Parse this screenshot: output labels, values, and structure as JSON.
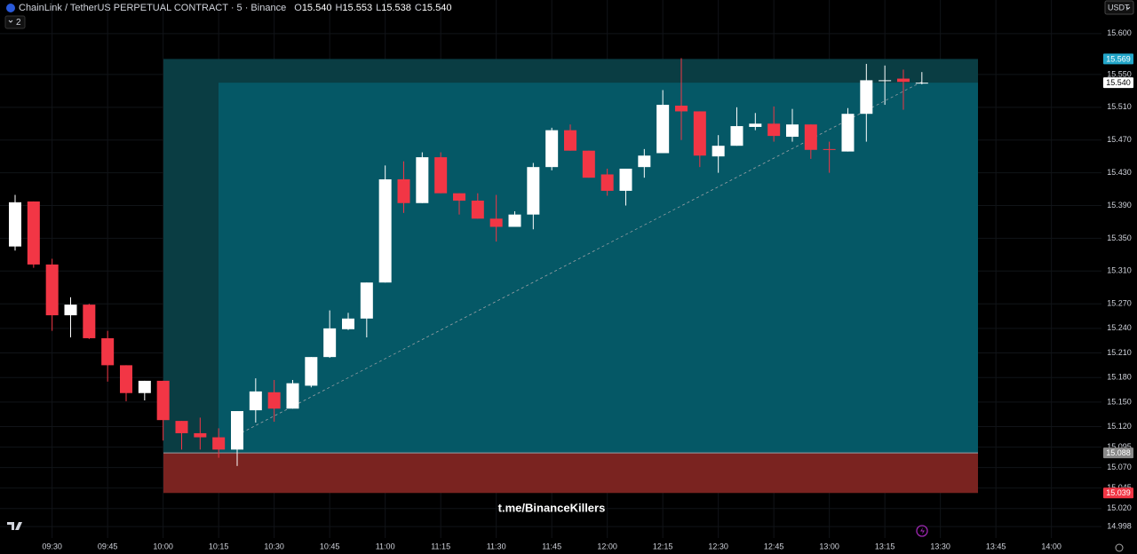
{
  "chart_data": {
    "type": "candlestick",
    "title": "ChainLink / TetherUS PERPETUAL CONTRACT · 5 · Binance",
    "ohlc_legend": [
      {
        "key": "O",
        "label": "15.540"
      },
      {
        "key": "H",
        "label": "15.553"
      },
      {
        "key": "L",
        "label": "15.538"
      },
      {
        "key": "C",
        "label": "15.540"
      }
    ],
    "currency": "USDT",
    "layout_count": "2",
    "watermark": "t.me/BinanceKillers",
    "up_color": "#ffffff",
    "down_color": "#f23645",
    "grid": true,
    "categories": [
      null,
      null,
      "09:30",
      null,
      null,
      "09:45",
      null,
      null,
      "10:00",
      null,
      null,
      "10:15",
      null,
      null,
      "10:30",
      null,
      null,
      "10:45",
      null,
      null,
      "11:00",
      null,
      null,
      "11:15",
      null,
      null,
      "11:30",
      null,
      null,
      "11:45",
      null,
      null,
      "12:00",
      null,
      null,
      "12:15",
      null,
      null,
      "12:30",
      null,
      null,
      "12:45",
      null,
      null,
      "13:00",
      null,
      null,
      "13:15",
      null,
      null,
      "13:30",
      null,
      null,
      "13:45",
      null,
      null,
      "14:00"
    ],
    "open": [
      15.34,
      15.395,
      15.318,
      15.256,
      15.269,
      15.228,
      15.195,
      15.161,
      15.176,
      15.127,
      15.112,
      15.107,
      15.092,
      15.14,
      15.162,
      15.142,
      15.17,
      15.205,
      15.239,
      15.252,
      15.296,
      15.422,
      15.393,
      15.449,
      15.405,
      15.396,
      15.374,
      15.364,
      15.379,
      15.437,
      15.482,
      15.457,
      15.428,
      15.408,
      15.437,
      15.454,
      15.512,
      15.505,
      15.45,
      15.463,
      15.486,
      15.49,
      15.474,
      15.489,
      15.459,
      15.456,
      15.502,
      15.542,
      15.545,
      15.54,
      null,
      null,
      null,
      null,
      null,
      null,
      null
    ],
    "high": [
      15.403,
      15.395,
      15.325,
      15.278,
      15.27,
      15.237,
      15.195,
      15.176,
      15.176,
      15.127,
      15.131,
      15.118,
      15.139,
      15.179,
      15.177,
      15.177,
      15.205,
      15.262,
      15.259,
      15.296,
      15.439,
      15.444,
      15.455,
      15.455,
      15.405,
      15.405,
      15.403,
      15.383,
      15.442,
      15.485,
      15.489,
      15.457,
      15.435,
      15.435,
      15.459,
      15.531,
      15.57,
      15.505,
      15.476,
      15.51,
      15.503,
      15.511,
      15.508,
      15.489,
      15.468,
      15.509,
      15.563,
      15.561,
      15.556,
      15.553,
      null,
      null,
      null,
      null,
      null,
      null,
      null
    ],
    "low": [
      15.335,
      15.314,
      15.237,
      15.229,
      15.227,
      15.175,
      15.151,
      15.152,
      15.103,
      15.092,
      15.092,
      15.082,
      15.072,
      15.125,
      15.126,
      15.142,
      15.168,
      15.204,
      15.238,
      15.229,
      15.296,
      15.381,
      15.393,
      15.405,
      15.379,
      15.374,
      15.346,
      15.364,
      15.361,
      15.433,
      15.457,
      15.424,
      15.402,
      15.39,
      15.424,
      15.454,
      15.47,
      15.437,
      15.43,
      15.463,
      15.482,
      15.468,
      15.468,
      15.447,
      15.43,
      15.456,
      15.468,
      15.513,
      15.507,
      15.538,
      null,
      null,
      null,
      null,
      null,
      null,
      null
    ],
    "close": [
      15.394,
      15.318,
      15.256,
      15.269,
      15.228,
      15.195,
      15.161,
      15.176,
      15.128,
      15.112,
      15.107,
      15.092,
      15.139,
      15.163,
      15.142,
      15.173,
      15.205,
      15.24,
      15.252,
      15.296,
      15.422,
      15.393,
      15.449,
      15.405,
      15.396,
      15.374,
      15.364,
      15.379,
      15.437,
      15.482,
      15.457,
      15.424,
      15.408,
      15.435,
      15.451,
      15.513,
      15.505,
      15.451,
      15.463,
      15.487,
      15.49,
      15.475,
      15.489,
      15.458,
      15.458,
      15.502,
      15.543,
      15.543,
      15.541,
      15.54,
      null,
      null,
      null,
      null,
      null,
      null,
      null
    ],
    "ylim": [
      14.984,
      15.641
    ],
    "yticks": [
      {
        "value": 15.6,
        "label": "15.600"
      },
      {
        "value": 15.55,
        "label": "15.550"
      },
      {
        "value": 15.51,
        "label": "15.510"
      },
      {
        "value": 15.47,
        "label": "15.470"
      },
      {
        "value": 15.43,
        "label": "15.430"
      },
      {
        "value": 15.39,
        "label": "15.390"
      },
      {
        "value": 15.35,
        "label": "15.350"
      },
      {
        "value": 15.31,
        "label": "15.310"
      },
      {
        "value": 15.27,
        "label": "15.270"
      },
      {
        "value": 15.24,
        "label": "15.240"
      },
      {
        "value": 15.21,
        "label": "15.210"
      },
      {
        "value": 15.18,
        "label": "15.180"
      },
      {
        "value": 15.15,
        "label": "15.150"
      },
      {
        "value": 15.12,
        "label": "15.120"
      },
      15.095,
      {
        "value": 15.07,
        "label": "15.070"
      },
      15.045,
      {
        "value": 15.02,
        "label": "15.020"
      },
      14.998
    ],
    "position": {
      "target": {
        "value": 15.569,
        "label": "15.569",
        "color": "#22a6c9"
      },
      "current": {
        "value": 15.54,
        "label": "15.540",
        "color": "#ffffff"
      },
      "entry": {
        "value": 15.088,
        "label": "15.088",
        "color": "#8a8a8a"
      },
      "stop": {
        "value": 15.039,
        "label": "15.039",
        "color": "#f23645"
      }
    }
  }
}
